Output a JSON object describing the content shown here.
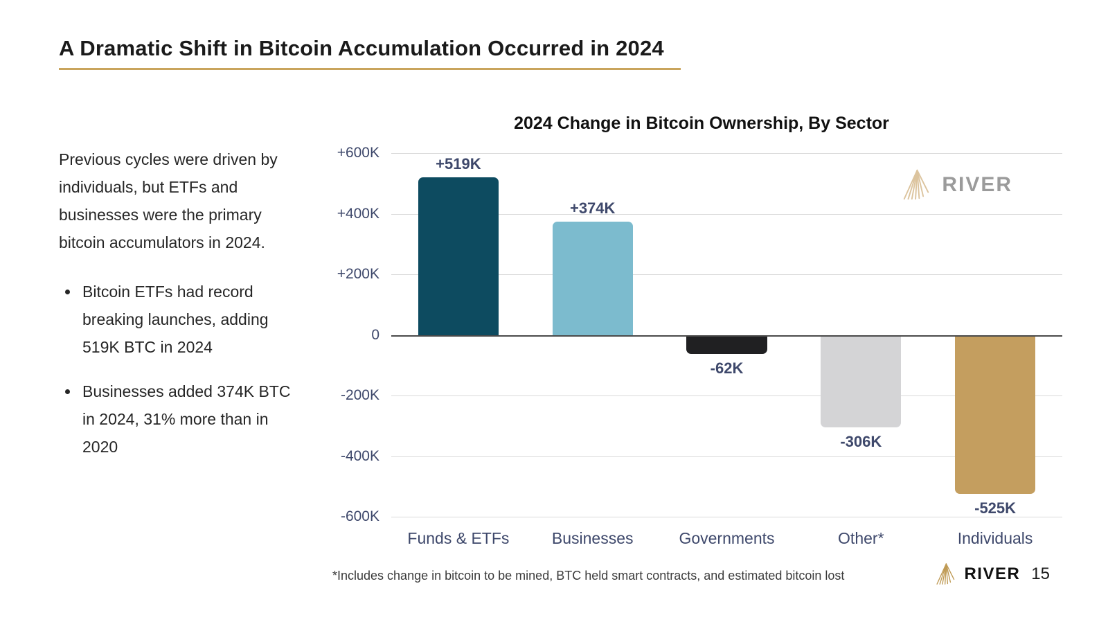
{
  "slide": {
    "title": "A Dramatic Shift in Bitcoin Accumulation Occurred in 2024",
    "intro": "Previous cycles were driven by individuals, but ETFs and businesses were the primary bitcoin accumulators in 2024.",
    "bullets": [
      "Bitcoin ETFs had record breaking launches, adding 519K BTC in 2024",
      "Businesses added 374K BTC in 2024, 31% more than in 2020"
    ],
    "footnote": "*Includes change in bitcoin to be mined, BTC held smart contracts, and estimated bitcoin lost",
    "brand": "RIVER",
    "page_number": "15"
  },
  "chart_data": {
    "type": "bar",
    "title": "2024 Change in Bitcoin Ownership, By Sector",
    "categories": [
      "Funds & ETFs",
      "Businesses",
      "Governments",
      "Other*",
      "Individuals"
    ],
    "values": [
      519,
      374,
      -62,
      -306,
      -525
    ],
    "value_labels": [
      "+519K",
      "+374K",
      "-62K",
      "-306K",
      "-525K"
    ],
    "unit": "K BTC",
    "ylim": [
      -600,
      600
    ],
    "yticks": [
      600,
      400,
      200,
      0,
      -200,
      -400,
      -600
    ],
    "ytick_labels": [
      "+600K",
      "+400K",
      "+200K",
      "0",
      "-200K",
      "-400K",
      "-600K"
    ],
    "grid": true,
    "legend": "none",
    "bar_colors": [
      "#0d4b60",
      "#7cbbce",
      "#202022",
      "#d4d4d6",
      "#c49e5f"
    ]
  },
  "colors": {
    "accent_gold": "#c9a45c",
    "axis_label": "#3e486b",
    "gridline": "#d9d9d9",
    "zero_line": "#4a4a4a",
    "watermark_icon": "#dcc49e",
    "watermark_text": "#9b9b9b",
    "footer_icon_gold": "#bf9a54"
  }
}
